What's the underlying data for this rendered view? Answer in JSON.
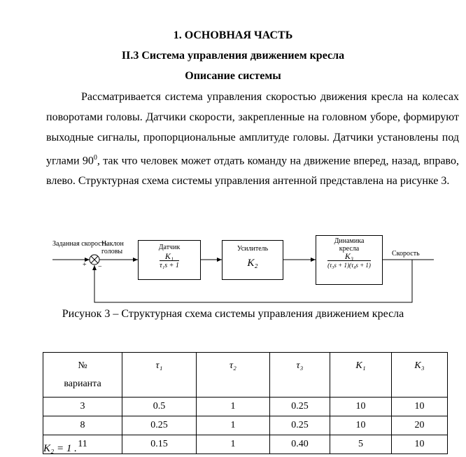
{
  "heading1": "1. ОСНОВНАЯ ЧАСТЬ",
  "heading2": "II.3 Система управления движением кресла",
  "heading3": "Описание системы",
  "paragraph": {
    "before_sup": "Рассматривается система управления скоростью движения кресла на колесах поворотами головы. Датчики скорости, закрепленные на головном уборе, формируют выходные сигналы, пропорциональные амплитуде головы. Датчики установлены под углами 90",
    "sup": "0",
    "after_sup": ", так что человек может отдать команду на движение вперед, назад, вправо, влево. Структурная схема системы управления антенной представлена на рисунке 3."
  },
  "diagram": {
    "input_label": "Заданная скорость",
    "sum_label": "Наклон головы",
    "plus": "+",
    "minus": "−",
    "block1": {
      "title": "Датчик",
      "num": "K₁",
      "den": "τ₁s + 1"
    },
    "block2": {
      "title": "Усилитель",
      "value": "K₂"
    },
    "block3": {
      "title": "Динамика кресла",
      "num": "K₃",
      "den": "(τ₃s + 1)(τ₄s + 1)"
    },
    "output_label": "Скорость"
  },
  "caption": "Рисунок 3 – Структурная схема системы управления движением кресла",
  "table": {
    "headers": [
      "№ вариант а",
      "τ₁",
      "τ₂",
      "τ₃",
      "K₁",
      "K₃"
    ],
    "header_no": "№",
    "header_variant": "варианта",
    "rows": [
      [
        "3",
        "0.5",
        "1",
        "0.25",
        "10",
        "10"
      ],
      [
        "8",
        "0.25",
        "1",
        "0.25",
        "10",
        "20"
      ],
      [
        "11",
        "0.15",
        "1",
        "0.40",
        "5",
        "10"
      ]
    ]
  },
  "note": "K₂ = 1 ."
}
